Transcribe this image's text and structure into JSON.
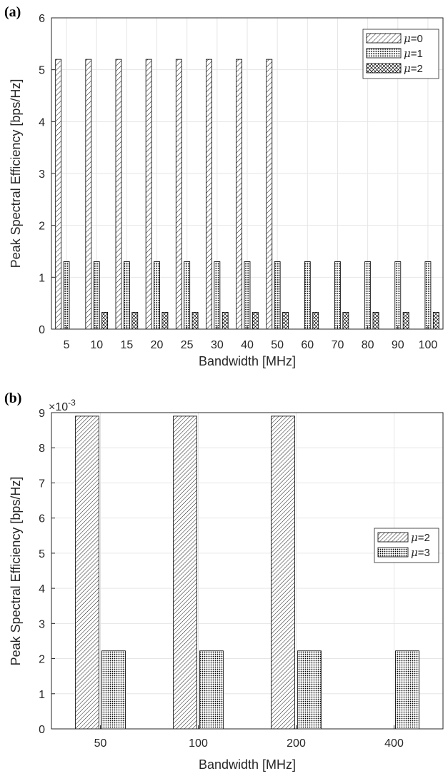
{
  "chart_data": [
    {
      "panel_label": "(a)",
      "type": "bar",
      "categories": [
        "5",
        "10",
        "15",
        "20",
        "25",
        "30",
        "40",
        "50",
        "60",
        "70",
        "80",
        "90",
        "100"
      ],
      "series": [
        {
          "name_prefix": "μ",
          "name_suffix": "=0",
          "values": [
            5.2,
            5.2,
            5.2,
            5.2,
            5.2,
            5.2,
            5.2,
            5.2,
            null,
            null,
            null,
            null,
            null
          ],
          "pattern": "diag-light"
        },
        {
          "name_prefix": "μ",
          "name_suffix": "=1",
          "values": [
            1.3,
            1.3,
            1.3,
            1.3,
            1.3,
            1.3,
            1.3,
            1.3,
            1.3,
            1.3,
            1.3,
            1.3,
            1.3
          ],
          "pattern": "dots"
        },
        {
          "name_prefix": "μ",
          "name_suffix": "=2",
          "values": [
            null,
            0.325,
            0.325,
            0.325,
            0.325,
            0.325,
            0.325,
            0.325,
            0.325,
            0.325,
            0.325,
            0.325,
            0.325
          ],
          "pattern": "crosshatch"
        }
      ],
      "yticks": [
        "0",
        "1",
        "2",
        "3",
        "4",
        "5",
        "6"
      ],
      "ylim": [
        0,
        6
      ],
      "xlabel": "Bandwidth [MHz]",
      "ylabel": "Peak Spectral Efficiency [bps/Hz]",
      "grid": true,
      "legend": "top-right"
    },
    {
      "panel_label": "(b)",
      "type": "bar",
      "categories": [
        "50",
        "100",
        "200",
        "400"
      ],
      "series": [
        {
          "name_prefix": "μ",
          "name_suffix": "=2",
          "values": [
            8.9,
            8.9,
            8.9,
            null
          ],
          "pattern": "diag-dense"
        },
        {
          "name_prefix": "μ",
          "name_suffix": "=3",
          "values": [
            2.22,
            2.22,
            2.22,
            2.22
          ],
          "pattern": "dots-dense"
        }
      ],
      "yticks": [
        "0",
        "1",
        "2",
        "3",
        "4",
        "5",
        "6",
        "7",
        "8",
        "9"
      ],
      "ylim": [
        0,
        9
      ],
      "scale_prefix": "×10",
      "scale_exponent": "-3",
      "xlabel": "Bandwidth [MHz]",
      "ylabel": "Peak Spectral Efficiency [bps/Hz]",
      "grid": true,
      "legend": "right"
    }
  ],
  "colors": {
    "axis": "#262626",
    "grid": "#e6e6e6",
    "bar_edge": "#000000",
    "bar_fill": "#ffffff"
  }
}
